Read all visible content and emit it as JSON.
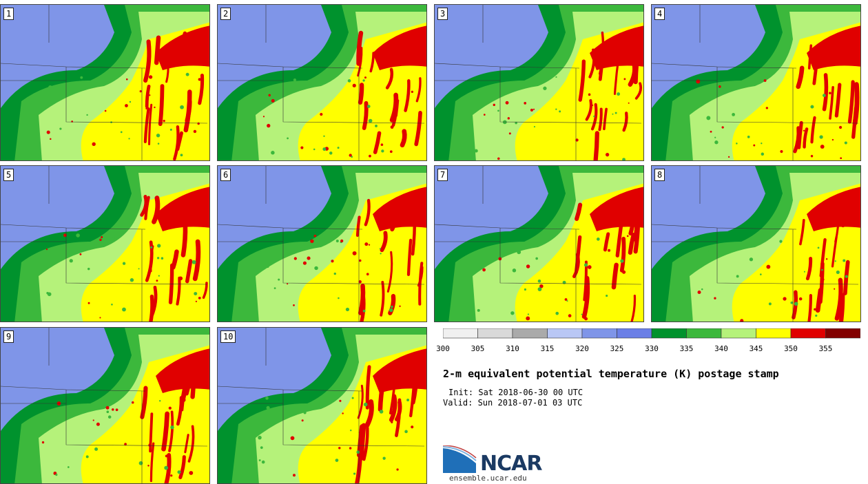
{
  "panels": [
    {
      "label": "1"
    },
    {
      "label": "2"
    },
    {
      "label": "3"
    },
    {
      "label": "4"
    },
    {
      "label": "5"
    },
    {
      "label": "6"
    },
    {
      "label": "7"
    },
    {
      "label": "8"
    },
    {
      "label": "9"
    },
    {
      "label": "10"
    }
  ],
  "colorbar": {
    "bins": [
      {
        "color": "#f0f0f0"
      },
      {
        "color": "#d9d9d9"
      },
      {
        "color": "#aaaaaa"
      },
      {
        "color": "#b9c7f5"
      },
      {
        "color": "#7f95e8"
      },
      {
        "color": "#6b7fe6"
      },
      {
        "color": "#00922d"
      },
      {
        "color": "#3cb83c"
      },
      {
        "color": "#b5f27a"
      },
      {
        "color": "#ffff00"
      },
      {
        "color": "#e00000"
      },
      {
        "color": "#820000"
      }
    ],
    "ticks": [
      "300",
      "305",
      "310",
      "315",
      "320",
      "325",
      "330",
      "335",
      "340",
      "345",
      "350",
      "355"
    ]
  },
  "title": "2-m equivalent potential temperature (K) postage stamp",
  "init": "Init: Sat 2018-06-30 00 UTC",
  "valid": "Valid: Sun 2018-07-01 03 UTC",
  "logo": {
    "text": "NCAR",
    "url": "ensemble.ucar.edu"
  }
}
